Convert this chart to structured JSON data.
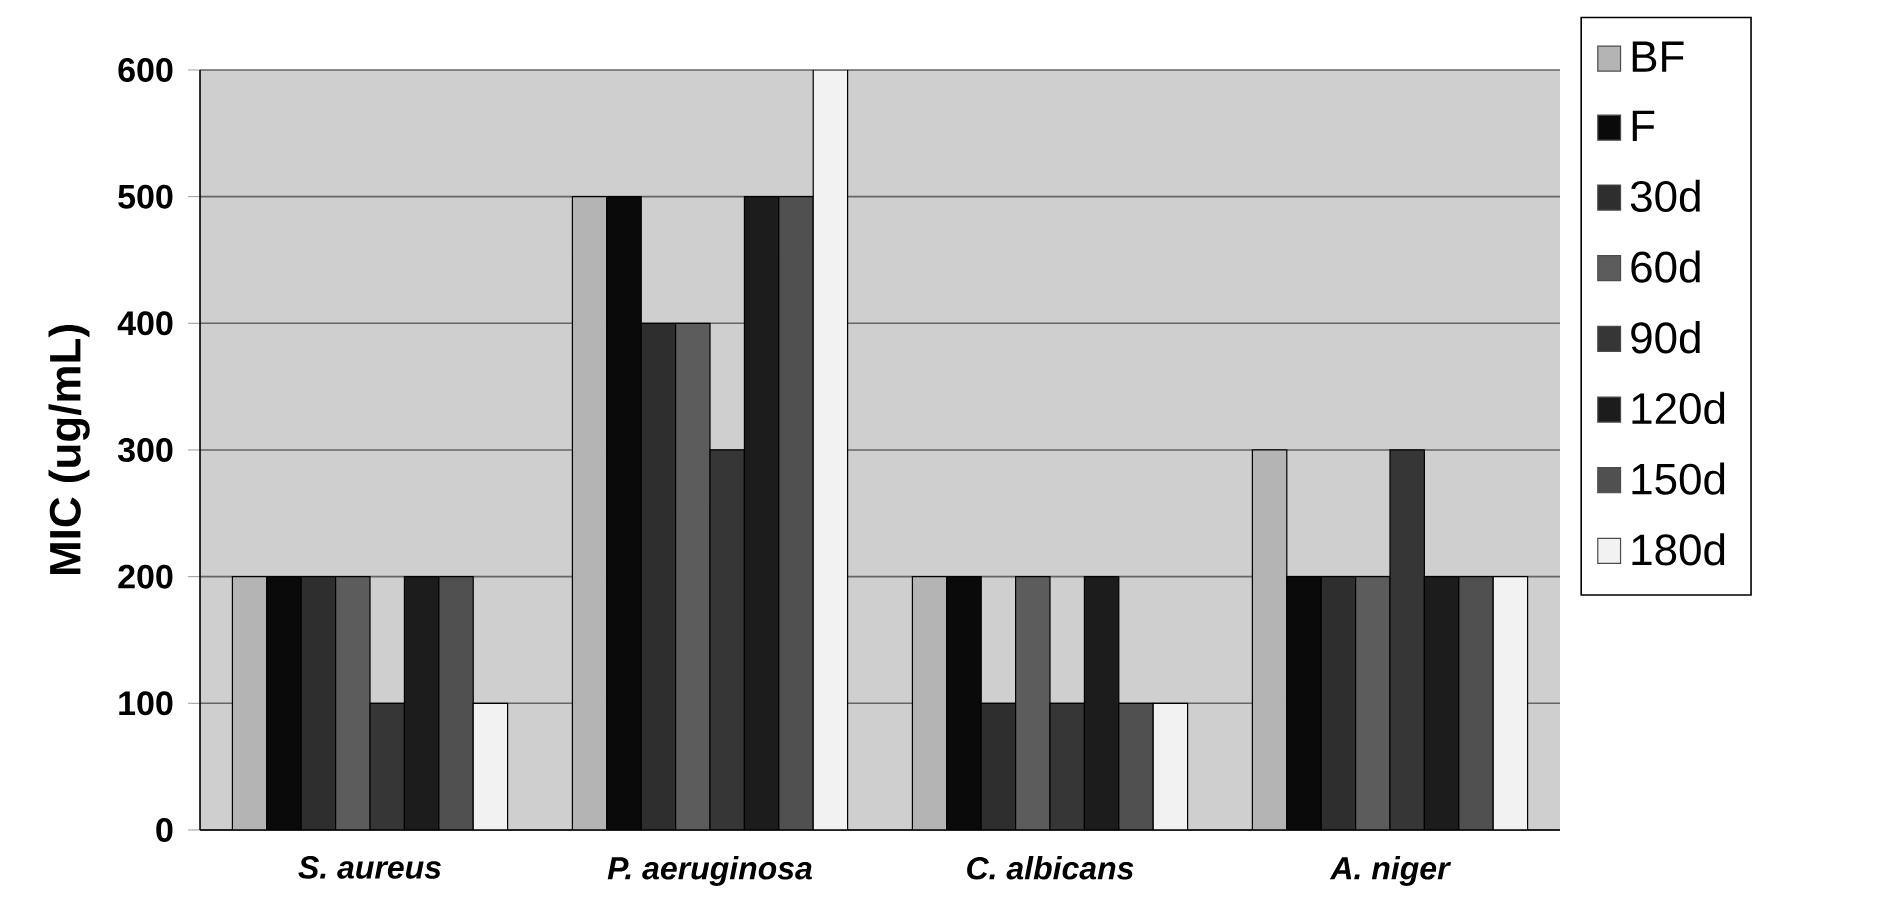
{
  "chart_data": {
    "type": "bar",
    "ylabel": "MIC (ug/mL)",
    "categories": [
      "S. aureus",
      "P. aeruginosa",
      "C. albicans",
      "A. niger"
    ],
    "series": [
      {
        "name": "BF",
        "color": "#b4b4b4",
        "values": [
          200,
          500,
          200,
          300
        ]
      },
      {
        "name": "F",
        "color": "#0a0a0a",
        "values": [
          200,
          500,
          200,
          200
        ]
      },
      {
        "name": "30d",
        "color": "#2e2e2e",
        "values": [
          200,
          400,
          100,
          200
        ]
      },
      {
        "name": "60d",
        "color": "#5c5c5c",
        "values": [
          200,
          400,
          200,
          200
        ]
      },
      {
        "name": "90d",
        "color": "#363636",
        "values": [
          100,
          300,
          100,
          300
        ]
      },
      {
        "name": "120d",
        "color": "#1c1c1c",
        "values": [
          200,
          500,
          200,
          200
        ]
      },
      {
        "name": "150d",
        "color": "#505050",
        "values": [
          200,
          500,
          100,
          200
        ]
      },
      {
        "name": "180d",
        "color": "#f2f2f2",
        "values": [
          100,
          600,
          100,
          200
        ]
      }
    ],
    "ylim": [
      0,
      600
    ],
    "yticks": [
      0,
      100,
      200,
      300,
      400,
      500,
      600
    ],
    "grid": "y",
    "legend": "right"
  }
}
